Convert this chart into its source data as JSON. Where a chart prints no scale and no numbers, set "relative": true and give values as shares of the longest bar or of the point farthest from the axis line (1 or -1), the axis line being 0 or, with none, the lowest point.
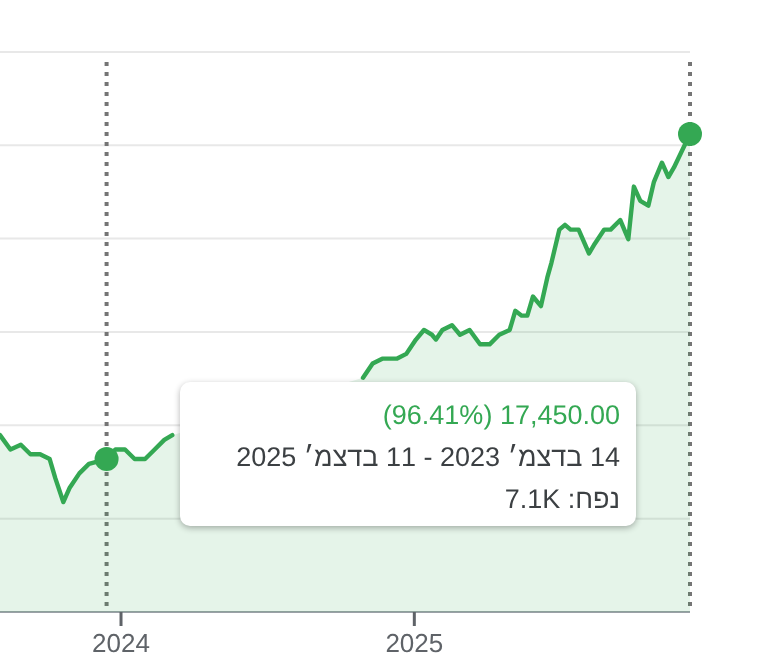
{
  "chart_data": {
    "type": "area",
    "relative": true,
    "grid": "y",
    "xlim": [
      "2023-08-03",
      "2025-12-11"
    ],
    "xticks": [
      {
        "value": "2024-01-01",
        "label": "2024"
      },
      {
        "value": "2025-01-01",
        "label": "2025"
      }
    ],
    "series": [
      {
        "color": "#34a853",
        "x": [
          "2023-08-03",
          "2023-08-16",
          "2023-08-29",
          "2023-09-10",
          "2023-09-22",
          "2023-10-04",
          "2023-10-11",
          "2023-10-21",
          "2023-10-29",
          "2023-11-10",
          "2023-11-22",
          "2023-12-14",
          "2023-12-25",
          "2024-01-06",
          "2024-01-18",
          "2024-01-31",
          "2024-02-12",
          "2024-02-24",
          "2024-03-05",
          "2024-03-18",
          "2024-03-30",
          "2024-10-29",
          "2024-11-10",
          "2024-11-22",
          "2024-12-10",
          "2024-12-22",
          "2025-01-03",
          "2025-01-13",
          "2025-01-23",
          "2025-01-28",
          "2025-02-05",
          "2025-02-17",
          "2025-02-27",
          "2025-03-11",
          "2025-03-24",
          "2025-04-05",
          "2025-04-17",
          "2025-04-30",
          "2025-05-07",
          "2025-05-15",
          "2025-05-22",
          "2025-05-29",
          "2025-06-08",
          "2025-06-16",
          "2025-06-21",
          "2025-07-01",
          "2025-07-08",
          "2025-07-15",
          "2025-07-25",
          "2025-08-07",
          "2025-08-14",
          "2025-08-26",
          "2025-09-03",
          "2025-09-15",
          "2025-09-25",
          "2025-10-02",
          "2025-10-10",
          "2025-10-20",
          "2025-10-27",
          "2025-11-06",
          "2025-11-14",
          "2025-11-21",
          "2025-12-11"
        ],
        "values": [
          0.37,
          0.34,
          0.35,
          0.33,
          0.33,
          0.32,
          0.28,
          0.23,
          0.26,
          0.29,
          0.31,
          0.32,
          0.34,
          0.34,
          0.32,
          0.32,
          0.34,
          0.36,
          0.37,
          null,
          null,
          0.49,
          0.52,
          0.53,
          0.53,
          0.54,
          0.57,
          0.59,
          0.58,
          0.57,
          0.59,
          0.6,
          0.58,
          0.59,
          0.56,
          0.56,
          0.58,
          0.59,
          0.63,
          0.62,
          0.62,
          0.66,
          0.64,
          0.7,
          0.73,
          0.8,
          0.81,
          0.8,
          0.8,
          0.75,
          0.77,
          0.8,
          0.8,
          0.82,
          0.78,
          0.89,
          0.86,
          0.85,
          0.9,
          0.94,
          0.91,
          0.93,
          1
        ]
      },
      {
        "type": "scatter",
        "color": "#34a853",
        "marker": "circle",
        "x": [
          "2023-12-14",
          "2025-12-11"
        ],
        "values": [
          0.32,
          1
        ]
      }
    ],
    "ref_lines": [
      {
        "axis": "x",
        "value": "2023-12-14",
        "color": "#757575",
        "line_style": "dotted"
      },
      {
        "axis": "x",
        "value": "2025-12-11",
        "color": "#757575",
        "line_style": "dotted"
      }
    ],
    "annotations": [
      "17,450.00 (96.41%)",
      "14 בדצמ׳ 2023 - 11 בדצמ׳ 2025",
      "נפח: 7.1K"
    ]
  }
}
